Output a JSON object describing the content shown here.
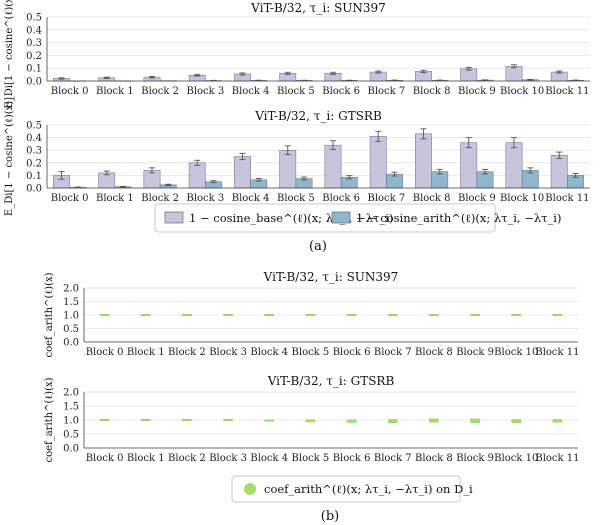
{
  "captions": {
    "a": "(a)",
    "b": "(b)"
  },
  "legends": {
    "a": [
      {
        "label": "1 − cosine_base^(ℓ)(x; λτ_i, −λτ_i)",
        "color": "#c9c4de"
      },
      {
        "label": "1 − cosine_arith^(ℓ)(x; λτ_i, −λτ_i)",
        "color": "#8fb6cc"
      }
    ],
    "b": [
      {
        "label": "coef_arith^(ℓ)(x; λτ_i, −λτ_i) on D_i",
        "color": "#a6dc6e"
      }
    ]
  },
  "chart_data": [
    {
      "type": "bar",
      "title": "ViT-B/32, τ_i: SUN397",
      "ylabel": "E_Di[1 − cosine^(ℓ)(x)]",
      "ylim": [
        0,
        0.5
      ],
      "yticks": [
        "0.0",
        "0.1",
        "0.2",
        "0.3",
        "0.4",
        "0.5"
      ],
      "categories": [
        "Block 0",
        "Block 1",
        "Block 2",
        "Block 3",
        "Block 4",
        "Block 5",
        "Block 6",
        "Block 7",
        "Block 8",
        "Block 9",
        "Block 10",
        "Block 11"
      ],
      "series": [
        {
          "values": [
            0.02,
            0.025,
            0.03,
            0.045,
            0.055,
            0.06,
            0.06,
            0.07,
            0.075,
            0.095,
            0.115,
            0.07
          ],
          "errors": [
            0.005,
            0.005,
            0.006,
            0.007,
            0.008,
            0.008,
            0.008,
            0.008,
            0.009,
            0.01,
            0.012,
            0.008
          ],
          "color": "#c9c4de"
        },
        {
          "values": [
            0.002,
            0.002,
            0.003,
            0.004,
            0.005,
            0.005,
            0.005,
            0.006,
            0.006,
            0.007,
            0.01,
            0.006
          ],
          "errors": [
            0,
            0,
            0,
            0.001,
            0.001,
            0.001,
            0.001,
            0.001,
            0.001,
            0.002,
            0.002,
            0.001
          ],
          "color": "#8fb6cc"
        }
      ]
    },
    {
      "type": "bar",
      "title": "ViT-B/32, τ_i: GTSRB",
      "ylabel": "E_Di[1 − cosine^(ℓ)(x)]",
      "ylim": [
        0,
        0.5
      ],
      "yticks": [
        "0.0",
        "0.1",
        "0.2",
        "0.3",
        "0.4",
        "0.5"
      ],
      "categories": [
        "Block 0",
        "Block 1",
        "Block 2",
        "Block 3",
        "Block 4",
        "Block 5",
        "Block 6",
        "Block 7",
        "Block 8",
        "Block 9",
        "Block 10",
        "Block 11"
      ],
      "series": [
        {
          "values": [
            0.1,
            0.12,
            0.14,
            0.2,
            0.25,
            0.3,
            0.34,
            0.41,
            0.43,
            0.36,
            0.36,
            0.26
          ],
          "errors": [
            0.03,
            0.015,
            0.02,
            0.02,
            0.025,
            0.035,
            0.035,
            0.04,
            0.04,
            0.04,
            0.04,
            0.025
          ],
          "color": "#c9c4de"
        },
        {
          "values": [
            0.005,
            0.01,
            0.025,
            0.05,
            0.065,
            0.075,
            0.085,
            0.11,
            0.13,
            0.13,
            0.14,
            0.1
          ],
          "errors": [
            0.003,
            0.003,
            0.005,
            0.008,
            0.01,
            0.012,
            0.013,
            0.015,
            0.018,
            0.018,
            0.02,
            0.015
          ],
          "color": "#8fb6cc"
        }
      ]
    },
    {
      "type": "box",
      "title": "ViT-B/32, τ_i: SUN397",
      "ylabel": "coef_arith^(ℓ)(x)",
      "ylim": [
        0,
        2
      ],
      "yticks": [
        "0.0",
        "0.5",
        "1.0",
        "1.5",
        "2.0"
      ],
      "categories": [
        "Block 0",
        "Block 1",
        "Block 2",
        "Block 3",
        "Block 4",
        "Block 5",
        "Block 6",
        "Block 7",
        "Block 8",
        "Block 9",
        "Block 10",
        "Block 11"
      ],
      "series": [
        {
          "medians": [
            1,
            1,
            1,
            1,
            1,
            1,
            1,
            1,
            1,
            1,
            1,
            1
          ],
          "spread": [
            0.01,
            0.01,
            0.01,
            0.01,
            0.01,
            0.01,
            0.01,
            0.012,
            0.012,
            0.012,
            0.015,
            0.012
          ],
          "color": "#a6dc6e"
        }
      ]
    },
    {
      "type": "box",
      "title": "ViT-B/32, τ_i: GTSRB",
      "ylabel": "coef_arith^(ℓ)(x)",
      "ylim": [
        0,
        2
      ],
      "yticks": [
        "0.0",
        "0.5",
        "1.0",
        "1.5",
        "2.0"
      ],
      "categories": [
        "Block 0",
        "Block 1",
        "Block 2",
        "Block 3",
        "Block 4",
        "Block 5",
        "Block 6",
        "Block 7",
        "Block 8",
        "Block 9",
        "Block 10",
        "Block 11"
      ],
      "series": [
        {
          "medians": [
            1.0,
            1.0,
            1.0,
            1.0,
            0.98,
            0.97,
            0.96,
            0.96,
            0.98,
            0.97,
            0.96,
            0.97
          ],
          "spread": [
            0.01,
            0.015,
            0.03,
            0.03,
            0.03,
            0.04,
            0.05,
            0.06,
            0.06,
            0.07,
            0.06,
            0.05
          ],
          "color": "#a6dc6e"
        }
      ]
    }
  ]
}
